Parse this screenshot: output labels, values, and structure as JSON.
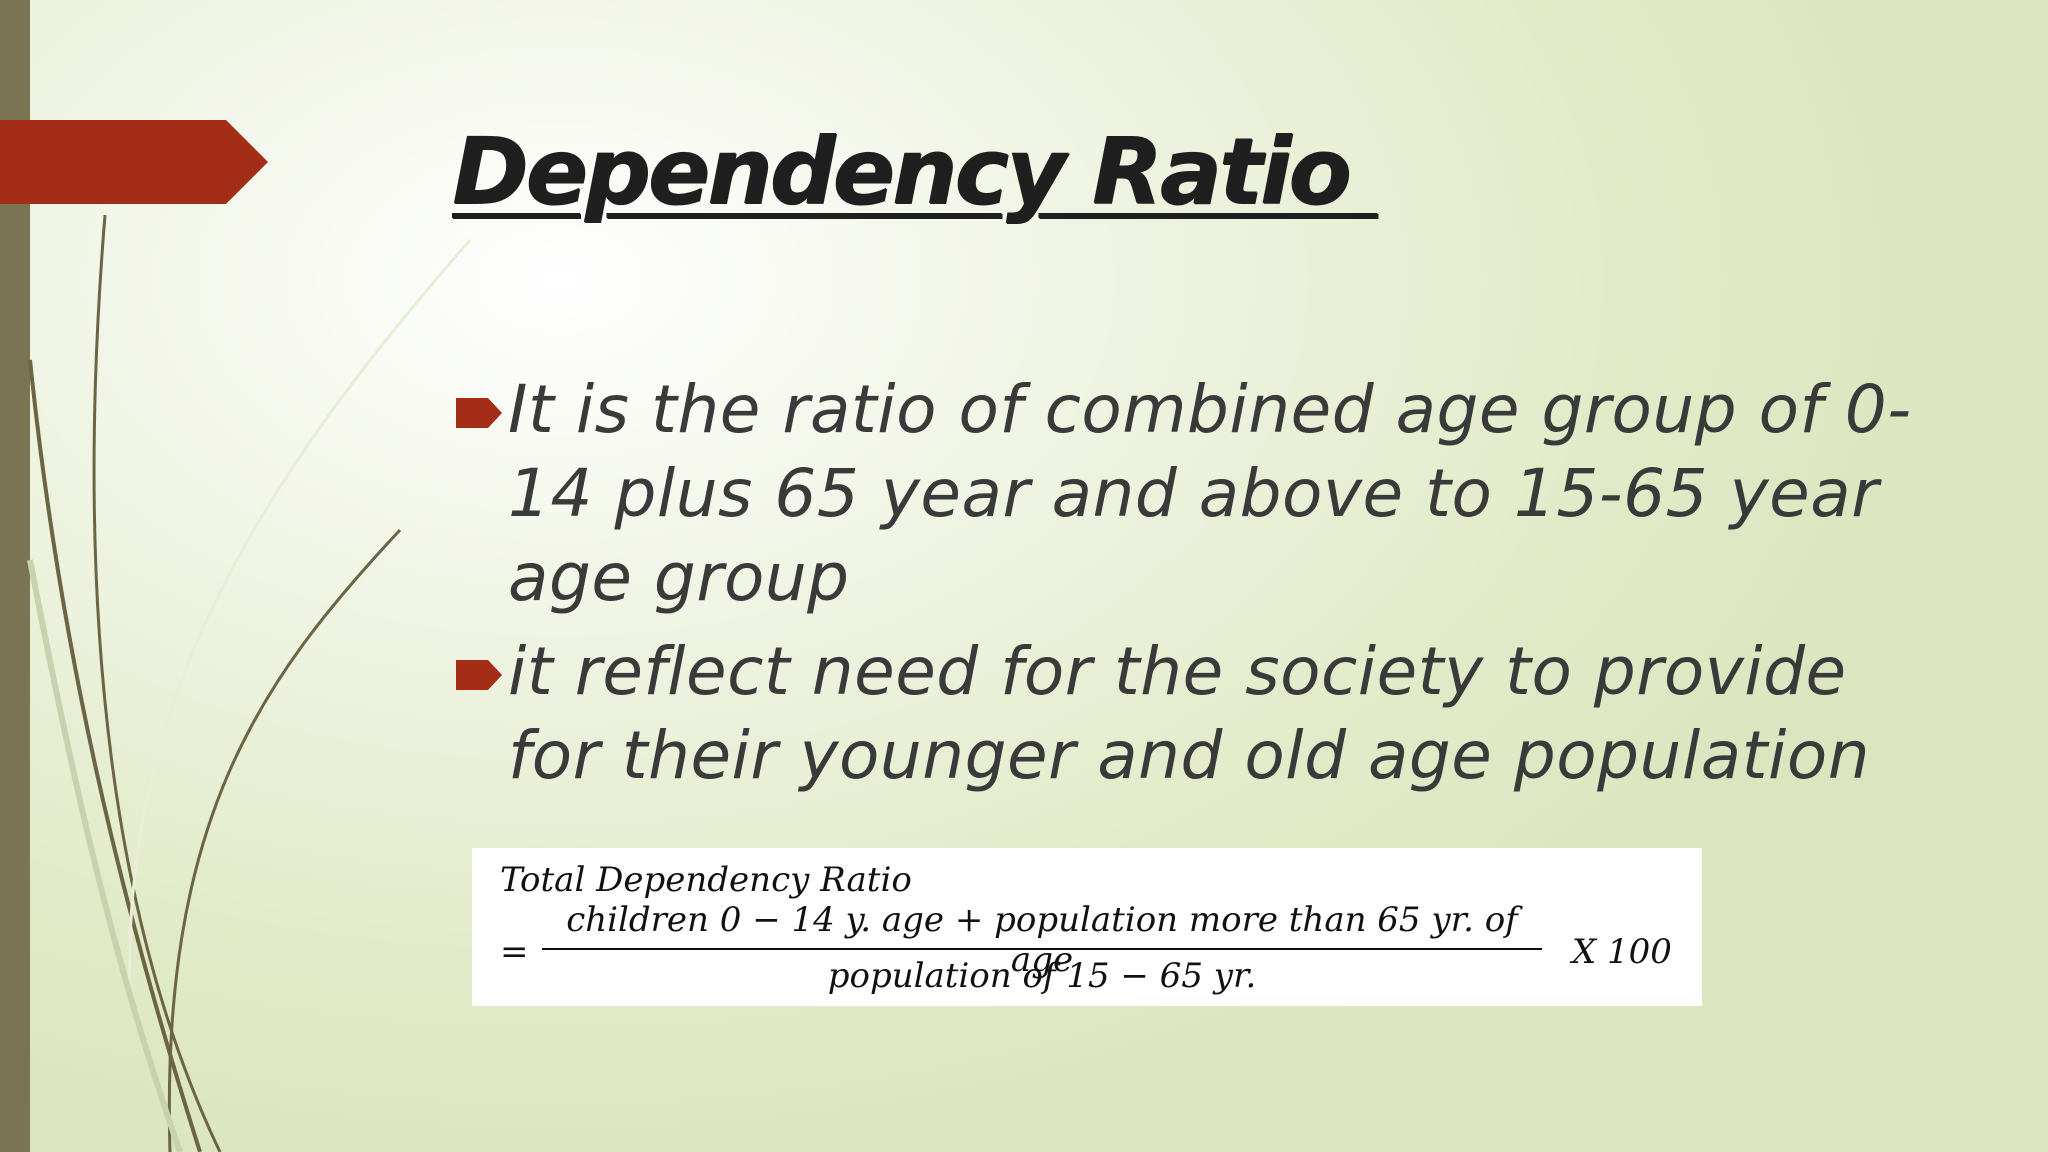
{
  "slide": {
    "title": "Dependency Ratio ",
    "bullets": [
      "It is the ratio of combined age group of 0-14 plus 65 year and above to 15-65 year age group",
      "it reflect need for the society to provide for their younger and old age population"
    ],
    "formula": {
      "label": "Total Dependency Ratio",
      "equals": "=",
      "numerator": "children 0 − 14 y. age + population more than 65 yr. of age",
      "denominator": "population of 15 − 65 yr.",
      "multiplier": "X 100"
    }
  },
  "colors": {
    "accent": "#a32d17",
    "left_bar": "#7a7354",
    "text": "#3a3a3a",
    "background": "#e2ebc9"
  }
}
